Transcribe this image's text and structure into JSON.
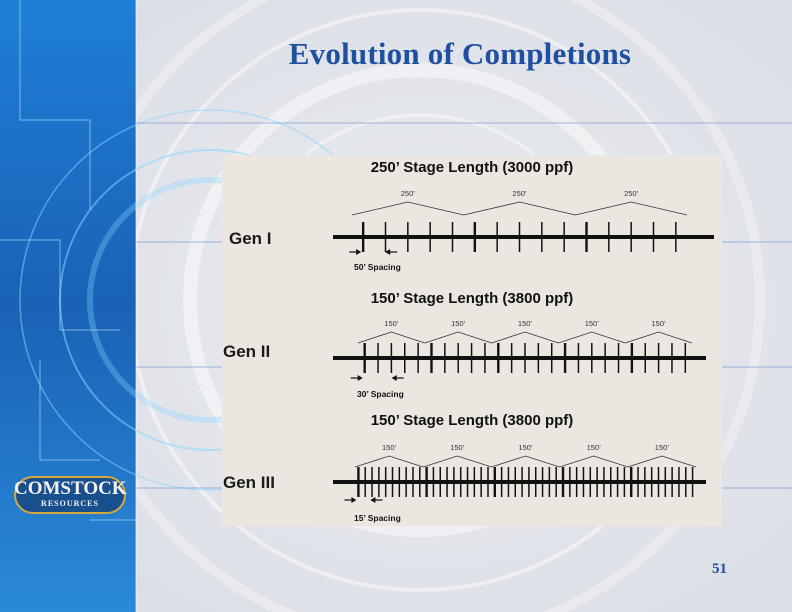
{
  "slide": {
    "title": "Evolution of Completions",
    "page_number": "51",
    "logo": {
      "name": "COMSTOCK",
      "sub": "RESOURCES"
    }
  },
  "generations": [
    {
      "label": "Gen I",
      "title": "250’ Stage Length (3000 ppf)",
      "stage_count": 3,
      "stage_label": "250’",
      "perfs_per_stage": 5,
      "spacing_label": "50’ Spacing"
    },
    {
      "label": "Gen II",
      "title": "150’ Stage Length (3800 ppf)",
      "stage_count": 5,
      "stage_label": "150’",
      "perfs_per_stage": 5,
      "spacing_label": "30’ Spacing"
    },
    {
      "label": "Gen III",
      "title": "150’ Stage Length (3800 ppf)",
      "stage_count": 5,
      "stage_label": "150’",
      "perfs_per_stage": 10,
      "spacing_label": "15’ Spacing"
    }
  ],
  "colors": {
    "title": "#1f4fa0",
    "sidebar": "#1565b8",
    "panel": "#ebe7e0"
  }
}
